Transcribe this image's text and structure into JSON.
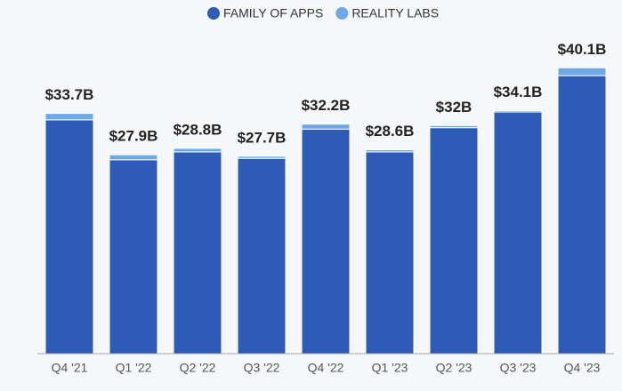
{
  "chart_data": {
    "type": "stacked_bar",
    "categories": [
      "Q4 '21",
      "Q1 '22",
      "Q2 '22",
      "Q3 '22",
      "Q4 '22",
      "Q1 '23",
      "Q2 '23",
      "Q3 '23",
      "Q4 '23"
    ],
    "series": [
      {
        "name": "FAMILY OF APPS",
        "color": "#2d5bb5",
        "values": [
          32.8,
          27.2,
          28.3,
          27.4,
          31.5,
          28.3,
          31.7,
          33.9,
          39.0
        ]
      },
      {
        "name": "REALITY LABS",
        "color": "#6ea8e6",
        "values": [
          0.9,
          0.7,
          0.5,
          0.3,
          0.7,
          0.3,
          0.3,
          0.2,
          1.1
        ]
      }
    ],
    "totals": {
      "values": [
        33.7,
        27.9,
        28.8,
        27.7,
        32.2,
        28.6,
        32,
        34.1,
        40.1
      ],
      "value_labels": [
        "$33.7B",
        "$27.9B",
        "$28.8B",
        "$27.7B",
        "$32.2B",
        "$28.6B",
        "$32B",
        "$34.1B",
        "$40.1B"
      ]
    },
    "ylim": [
      0,
      44
    ]
  }
}
